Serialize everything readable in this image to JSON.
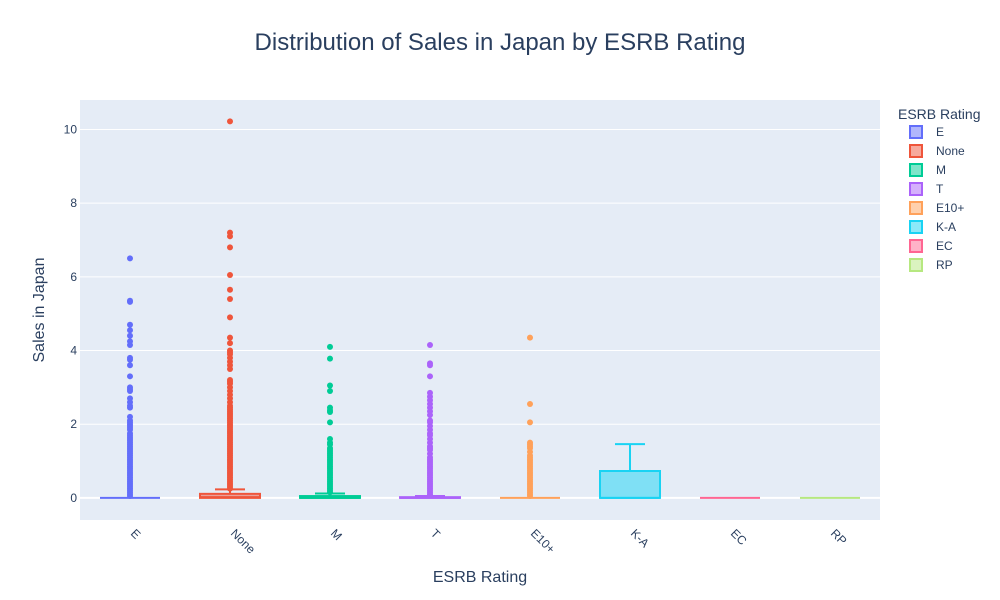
{
  "chart_data": {
    "type": "box",
    "title": "Distribution of Sales in Japan by ESRB Rating",
    "xlabel": "ESRB Rating",
    "ylabel": "Sales in Japan",
    "ylim": [
      -0.6,
      10.8
    ],
    "yticks": [
      0,
      2,
      4,
      6,
      8,
      10
    ],
    "grid": true,
    "legend_title": "ESRB Rating",
    "legend_position": "right",
    "categories": [
      "E",
      "None",
      "M",
      "T",
      "E10+",
      "K-A",
      "EC",
      "RP"
    ],
    "series": [
      {
        "name": "E",
        "color": "#636efa",
        "box": {
          "min": 0,
          "q1": 0,
          "median": 0,
          "q3": 0,
          "max": 0
        },
        "outliers": [
          6.5,
          5.35,
          5.32,
          4.7,
          4.55,
          4.4,
          4.25,
          4.15,
          3.8,
          3.75,
          3.6,
          3.3,
          3.0,
          2.95,
          2.9,
          2.7,
          2.6,
          2.5,
          2.45,
          2.2,
          2.1,
          2.05,
          2.0,
          1.95,
          1.9,
          1.85,
          1.75,
          1.7,
          1.65,
          1.6,
          1.55,
          1.5,
          1.45,
          1.4,
          1.35,
          1.3,
          1.25,
          1.2,
          1.15,
          1.1,
          1.05,
          1.0,
          0.95,
          0.9,
          0.85,
          0.8,
          0.75,
          0.7,
          0.65,
          0.6,
          0.55,
          0.5,
          0.45,
          0.4,
          0.35,
          0.3,
          0.25,
          0.2,
          0.15,
          0.1,
          0.05
        ]
      },
      {
        "name": "None",
        "color": "#ef553b",
        "box": {
          "min": 0,
          "q1": 0,
          "median": 0.02,
          "q3": 0.11,
          "max": 0.23
        },
        "outliers": [
          10.22,
          7.2,
          7.1,
          6.8,
          6.05,
          5.65,
          5.4,
          4.9,
          4.35,
          4.2,
          4.0,
          3.95,
          3.9,
          3.8,
          3.7,
          3.6,
          3.5,
          3.2,
          3.15,
          3.1,
          3.0,
          2.9,
          2.8,
          2.7,
          2.6,
          2.5,
          2.45,
          2.4,
          2.35,
          2.3,
          2.25,
          2.2,
          2.15,
          2.1,
          2.05,
          2.0,
          1.95,
          1.9,
          1.85,
          1.8,
          1.75,
          1.7,
          1.65,
          1.6,
          1.55,
          1.5,
          1.45,
          1.4,
          1.35,
          1.3,
          1.25,
          1.2,
          1.15,
          1.1,
          1.05,
          1.0,
          0.95,
          0.9,
          0.85,
          0.8,
          0.75,
          0.7,
          0.65,
          0.6,
          0.55,
          0.5,
          0.45,
          0.4,
          0.35,
          0.3,
          0.25
        ]
      },
      {
        "name": "M",
        "color": "#00cc96",
        "box": {
          "min": 0,
          "q1": 0,
          "median": 0,
          "q3": 0.05,
          "max": 0.12
        },
        "outliers": [
          4.1,
          3.78,
          3.05,
          2.9,
          2.45,
          2.38,
          2.33,
          2.05,
          1.6,
          1.5,
          1.45,
          1.35,
          1.3,
          1.25,
          1.2,
          1.15,
          1.1,
          1.05,
          1.0,
          0.95,
          0.9,
          0.85,
          0.8,
          0.75,
          0.7,
          0.65,
          0.6,
          0.55,
          0.5,
          0.45,
          0.4,
          0.35,
          0.3,
          0.25,
          0.2,
          0.15
        ]
      },
      {
        "name": "T",
        "color": "#ab63fa",
        "box": {
          "min": 0,
          "q1": 0,
          "median": 0,
          "q3": 0.02,
          "max": 0.05
        },
        "outliers": [
          4.15,
          3.65,
          3.6,
          3.3,
          2.85,
          2.75,
          2.65,
          2.55,
          2.45,
          2.35,
          2.25,
          2.1,
          2.05,
          1.95,
          1.85,
          1.75,
          1.7,
          1.6,
          1.5,
          1.4,
          1.35,
          1.3,
          1.2,
          1.1,
          1.05,
          1.0,
          0.95,
          0.9,
          0.85,
          0.8,
          0.75,
          0.7,
          0.65,
          0.6,
          0.55,
          0.5,
          0.45,
          0.4,
          0.35,
          0.3,
          0.25,
          0.2,
          0.15,
          0.1,
          0.07
        ]
      },
      {
        "name": "E10+",
        "color": "#ffa15a",
        "box": {
          "min": 0,
          "q1": 0,
          "median": 0,
          "q3": 0,
          "max": 0
        },
        "outliers": [
          4.35,
          2.55,
          2.05,
          1.5,
          1.45,
          1.4,
          1.35,
          1.25,
          1.15,
          1.1,
          1.05,
          1.0,
          0.95,
          0.9,
          0.85,
          0.8,
          0.75,
          0.7,
          0.65,
          0.6,
          0.55,
          0.5,
          0.45,
          0.4,
          0.35,
          0.3,
          0.25,
          0.2,
          0.15,
          0.1,
          0.05
        ]
      },
      {
        "name": "K-A",
        "color": "#19d3f3",
        "box": {
          "min": 0,
          "q1": 0,
          "median": 0,
          "q3": 0.73,
          "max": 1.46
        },
        "outliers": []
      },
      {
        "name": "EC",
        "color": "#ff6692",
        "box": {
          "min": 0,
          "q1": 0,
          "median": 0,
          "q3": 0,
          "max": 0
        },
        "outliers": []
      },
      {
        "name": "RP",
        "color": "#b6e880",
        "box": {
          "min": 0,
          "q1": 0,
          "median": 0,
          "q3": 0,
          "max": 0
        },
        "outliers": []
      }
    ]
  }
}
